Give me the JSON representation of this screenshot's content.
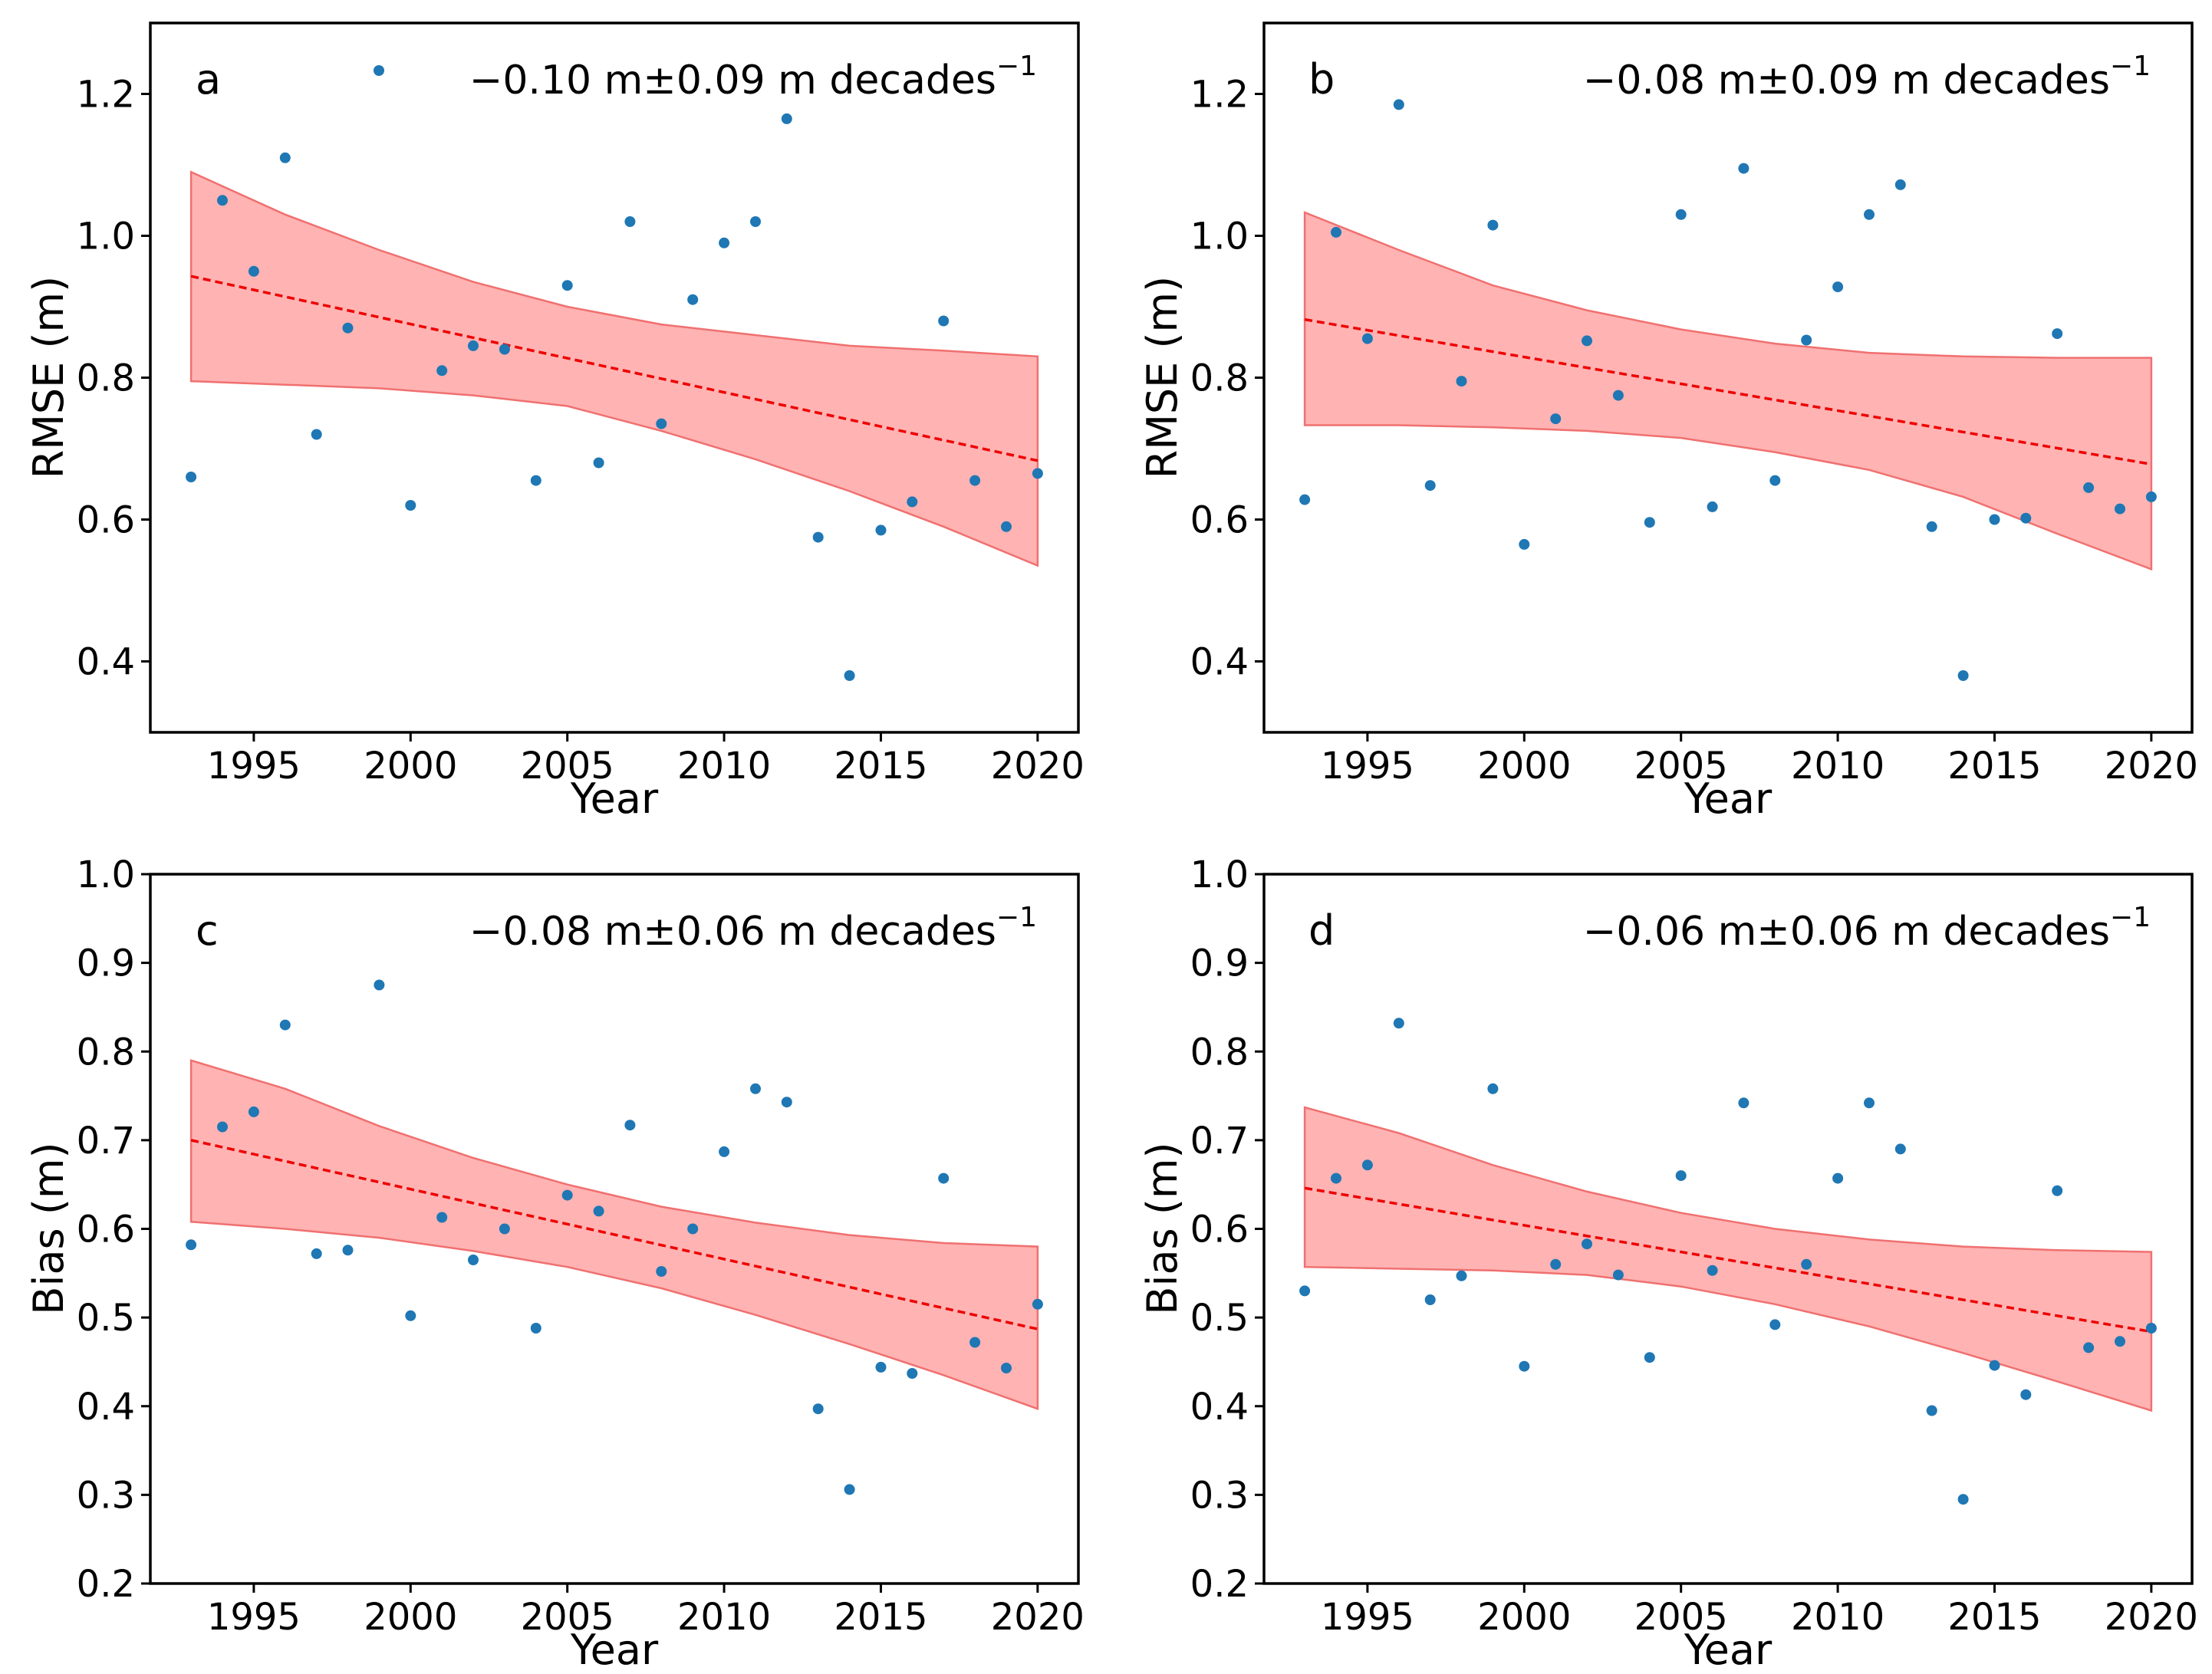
{
  "colors": {
    "point": "#1f77b4",
    "trend_line": "#ee0000",
    "band_fill": "#ffb3b3",
    "band_edge": "#f07070",
    "axes": "#000000"
  },
  "chart_data": [
    {
      "type": "scatter",
      "panel": "a",
      "trend_text": "−0.10 m±0.09 m decades",
      "trend_sup": "−1",
      "show_legend_marker": true,
      "xlabel": "Year",
      "ylabel": "RMSE (m)",
      "xlim": [
        1991.7,
        2021.3
      ],
      "ylim": [
        0.3,
        1.3
      ],
      "xticks": [
        1995,
        2000,
        2005,
        2010,
        2015,
        2020
      ],
      "xtick_labels": [
        "1995",
        "2000",
        "2005",
        "2010",
        "2015",
        "2020"
      ],
      "yticks": [
        0.4,
        0.6,
        0.8,
        1.0,
        1.2
      ],
      "ytick_labels": [
        "0.4",
        "0.6",
        "0.8",
        "1.0",
        "1.2"
      ],
      "x": [
        1993,
        1994,
        1995,
        1996,
        1997,
        1998,
        2000,
        2001,
        2002,
        2003,
        2004,
        2005,
        2006,
        2007,
        2008,
        2009,
        2010,
        2011,
        2012,
        2013,
        2014,
        2015,
        2016,
        2017,
        2018,
        2019,
        2020
      ],
      "y": [
        0.66,
        1.05,
        0.95,
        1.11,
        0.72,
        0.87,
        0.62,
        0.81,
        0.845,
        0.84,
        0.655,
        0.93,
        0.68,
        1.02,
        0.735,
        0.91,
        0.99,
        1.02,
        1.165,
        0.575,
        0.38,
        0.585,
        0.625,
        0.88,
        0.655,
        0.59,
        0.665
      ],
      "fit": {
        "x": [
          1993,
          2020
        ],
        "y": [
          0.943,
          0.683
        ]
      },
      "band": {
        "x": [
          1993,
          1996,
          1999,
          2002,
          2005,
          2008,
          2011,
          2014,
          2017,
          2020
        ],
        "upper": [
          1.09,
          1.03,
          0.98,
          0.935,
          0.9,
          0.875,
          0.86,
          0.845,
          0.838,
          0.83
        ],
        "lower": [
          0.795,
          0.79,
          0.785,
          0.775,
          0.76,
          0.725,
          0.685,
          0.64,
          0.59,
          0.535
        ]
      }
    },
    {
      "type": "scatter",
      "panel": "b",
      "trend_text": "−0.08 m±0.09 m decades",
      "trend_sup": "−1",
      "show_legend_marker": false,
      "xlabel": "Year",
      "ylabel": "RMSE (m)",
      "xlim": [
        1991.7,
        2021.3
      ],
      "ylim": [
        0.3,
        1.3
      ],
      "xticks": [
        1995,
        2000,
        2005,
        2010,
        2015,
        2020
      ],
      "xtick_labels": [
        "1995",
        "2000",
        "2005",
        "2010",
        "2015",
        "2020"
      ],
      "yticks": [
        0.4,
        0.6,
        0.8,
        1.0,
        1.2
      ],
      "ytick_labels": [
        "0.4",
        "0.6",
        "0.8",
        "1.0",
        "1.2"
      ],
      "x": [
        1993,
        1994,
        1995,
        1996,
        1997,
        1998,
        1999,
        2000,
        2001,
        2002,
        2003,
        2004,
        2005,
        2006,
        2007,
        2008,
        2009,
        2010,
        2011,
        2012,
        2013,
        2014,
        2015,
        2016,
        2017,
        2018,
        2019,
        2020
      ],
      "y": [
        0.628,
        1.005,
        0.855,
        1.185,
        0.648,
        0.795,
        1.015,
        0.565,
        0.742,
        0.852,
        0.775,
        0.596,
        1.03,
        0.618,
        1.095,
        0.655,
        0.853,
        0.928,
        1.03,
        1.072,
        0.59,
        0.38,
        0.6,
        0.602,
        0.862,
        0.645,
        0.615,
        0.632
      ],
      "fit": {
        "x": [
          1993,
          2020
        ],
        "y": [
          0.882,
          0.678
        ]
      },
      "band": {
        "x": [
          1993,
          1996,
          1999,
          2002,
          2005,
          2008,
          2011,
          2014,
          2017,
          2020
        ],
        "upper": [
          1.033,
          0.98,
          0.93,
          0.895,
          0.868,
          0.848,
          0.835,
          0.83,
          0.828,
          0.828
        ],
        "lower": [
          0.733,
          0.733,
          0.73,
          0.725,
          0.715,
          0.695,
          0.67,
          0.632,
          0.58,
          0.53
        ]
      }
    },
    {
      "type": "scatter",
      "panel": "c",
      "trend_text": "−0.08 m±0.06 m decades",
      "trend_sup": "−1",
      "show_legend_marker": false,
      "xlabel": "Year",
      "ylabel": "Bias (m)",
      "xlim": [
        1991.7,
        2021.3
      ],
      "ylim": [
        0.2,
        1.0
      ],
      "xticks": [
        1995,
        2000,
        2005,
        2010,
        2015,
        2020
      ],
      "xtick_labels": [
        "1995",
        "2000",
        "2005",
        "2010",
        "2015",
        "2020"
      ],
      "yticks": [
        0.2,
        0.3,
        0.4,
        0.5,
        0.6,
        0.7,
        0.8,
        0.9,
        1.0
      ],
      "ytick_labels": [
        "0.2",
        "0.3",
        "0.4",
        "0.5",
        "0.6",
        "0.7",
        "0.8",
        "0.9",
        "1.0"
      ],
      "x": [
        1993,
        1994,
        1995,
        1996,
        1997,
        1998,
        1999,
        2000,
        2001,
        2002,
        2003,
        2004,
        2005,
        2006,
        2007,
        2008,
        2009,
        2010,
        2011,
        2012,
        2013,
        2014,
        2015,
        2016,
        2017,
        2018,
        2019,
        2020
      ],
      "y": [
        0.582,
        0.715,
        0.732,
        0.83,
        0.572,
        0.576,
        0.875,
        0.502,
        0.613,
        0.565,
        0.6,
        0.488,
        0.638,
        0.62,
        0.717,
        0.552,
        0.6,
        0.687,
        0.758,
        0.743,
        0.397,
        0.306,
        0.444,
        0.437,
        0.657,
        0.472,
        0.443,
        0.515
      ],
      "fit": {
        "x": [
          1993,
          2020
        ],
        "y": [
          0.7,
          0.487
        ]
      },
      "band": {
        "x": [
          1993,
          1996,
          1999,
          2002,
          2005,
          2008,
          2011,
          2014,
          2017,
          2020
        ],
        "upper": [
          0.79,
          0.758,
          0.716,
          0.68,
          0.65,
          0.625,
          0.607,
          0.593,
          0.584,
          0.58
        ],
        "lower": [
          0.608,
          0.6,
          0.59,
          0.575,
          0.557,
          0.533,
          0.503,
          0.47,
          0.435,
          0.397
        ]
      }
    },
    {
      "type": "scatter",
      "panel": "d",
      "trend_text": "−0.06 m±0.06 m decades",
      "trend_sup": "−1",
      "show_legend_marker": false,
      "xlabel": "Year",
      "ylabel": "Bias (m)",
      "xlim": [
        1991.7,
        2021.3
      ],
      "ylim": [
        0.2,
        1.0
      ],
      "xticks": [
        1995,
        2000,
        2005,
        2010,
        2015,
        2020
      ],
      "xtick_labels": [
        "1995",
        "2000",
        "2005",
        "2010",
        "2015",
        "2020"
      ],
      "yticks": [
        0.2,
        0.3,
        0.4,
        0.5,
        0.6,
        0.7,
        0.8,
        0.9,
        1.0
      ],
      "ytick_labels": [
        "0.2",
        "0.3",
        "0.4",
        "0.5",
        "0.6",
        "0.7",
        "0.8",
        "0.9",
        "1.0"
      ],
      "x": [
        1993,
        1994,
        1995,
        1996,
        1997,
        1998,
        1999,
        2000,
        2001,
        2002,
        2003,
        2004,
        2005,
        2006,
        2007,
        2008,
        2009,
        2010,
        2011,
        2012,
        2013,
        2014,
        2015,
        2016,
        2017,
        2018,
        2019,
        2020
      ],
      "y": [
        0.53,
        0.657,
        0.672,
        0.832,
        0.52,
        0.547,
        0.758,
        0.445,
        0.56,
        0.583,
        0.548,
        0.455,
        0.66,
        0.553,
        0.742,
        0.492,
        0.56,
        0.657,
        0.742,
        0.69,
        0.395,
        0.295,
        0.446,
        0.413,
        0.643,
        0.466,
        0.473,
        0.488
      ],
      "fit": {
        "x": [
          1993,
          2020
        ],
        "y": [
          0.646,
          0.484
        ]
      },
      "band": {
        "x": [
          1993,
          1996,
          1999,
          2002,
          2005,
          2008,
          2011,
          2014,
          2017,
          2020
        ],
        "upper": [
          0.737,
          0.708,
          0.672,
          0.642,
          0.618,
          0.6,
          0.588,
          0.58,
          0.576,
          0.574
        ],
        "lower": [
          0.557,
          0.555,
          0.553,
          0.548,
          0.535,
          0.515,
          0.49,
          0.46,
          0.428,
          0.395
        ]
      }
    }
  ]
}
